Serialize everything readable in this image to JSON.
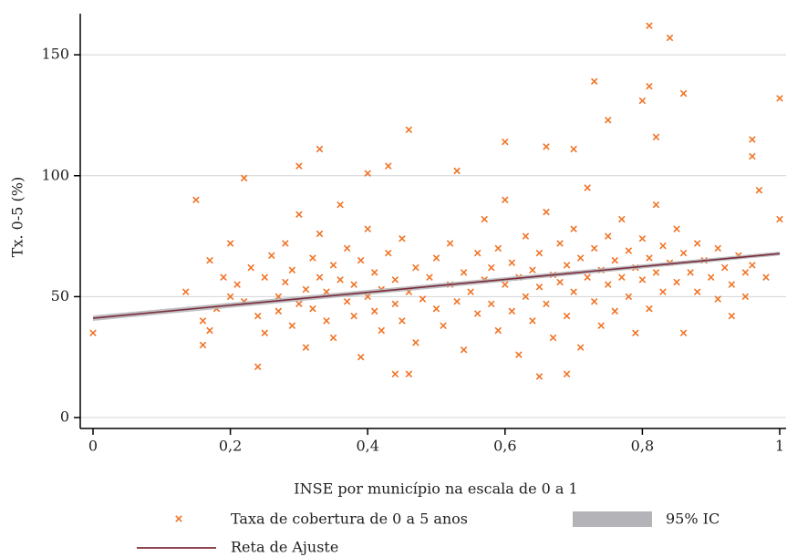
{
  "chart_data": {
    "type": "scatter",
    "x_label": "INSE por município na escala de 0 a 1",
    "y_label": "Tx. 0-5 (%)",
    "xlim": [
      -0.0186,
      1.0093
    ],
    "ylim": [
      -4.5,
      167
    ],
    "xticks": [
      0,
      {
        "value": 0.2,
        "label": "0,2"
      },
      {
        "value": 0.4,
        "label": "0,4"
      },
      {
        "value": 0.6,
        "label": "0,6"
      },
      {
        "value": 0.8,
        "label": "0,8"
      },
      1
    ],
    "yticks": [
      0,
      50,
      100,
      150
    ],
    "grid": true,
    "series": [
      {
        "name": "Taxa de cobertura de 0 a 5 anos",
        "color": "#f07426",
        "marker": "x",
        "x": [
          0,
          0.135,
          0.15,
          0.33,
          0.3,
          0.46,
          0.6,
          0.73,
          0.81,
          0.84,
          0.81,
          0.86,
          0.8,
          1,
          1,
          0.96,
          0.96,
          0.97,
          0.82,
          0.75,
          0.4,
          0.43,
          0.22,
          0.53,
          0.66,
          0.7,
          0.44,
          0.46,
          0.65,
          0.69,
          0.24,
          0.91,
          0.95,
          0.93,
          0.86,
          0.17,
          0.16,
          0.16,
          0.17,
          0.18,
          0.19,
          0.2,
          0.2,
          0.21,
          0.22,
          0.23,
          0.24,
          0.25,
          0.25,
          0.26,
          0.27,
          0.27,
          0.28,
          0.28,
          0.29,
          0.29,
          0.3,
          0.3,
          0.31,
          0.31,
          0.32,
          0.32,
          0.33,
          0.33,
          0.34,
          0.34,
          0.35,
          0.35,
          0.36,
          0.36,
          0.37,
          0.37,
          0.38,
          0.38,
          0.39,
          0.39,
          0.4,
          0.4,
          0.41,
          0.41,
          0.42,
          0.42,
          0.43,
          0.44,
          0.44,
          0.45,
          0.45,
          0.46,
          0.47,
          0.47,
          0.48,
          0.49,
          0.5,
          0.5,
          0.51,
          0.52,
          0.52,
          0.53,
          0.54,
          0.54,
          0.55,
          0.56,
          0.56,
          0.57,
          0.57,
          0.58,
          0.58,
          0.59,
          0.59,
          0.6,
          0.6,
          0.61,
          0.61,
          0.62,
          0.62,
          0.63,
          0.63,
          0.64,
          0.64,
          0.65,
          0.65,
          0.66,
          0.66,
          0.67,
          0.67,
          0.68,
          0.68,
          0.69,
          0.69,
          0.7,
          0.7,
          0.71,
          0.71,
          0.72,
          0.72,
          0.73,
          0.73,
          0.74,
          0.74,
          0.75,
          0.75,
          0.76,
          0.76,
          0.77,
          0.77,
          0.78,
          0.78,
          0.79,
          0.79,
          0.8,
          0.8,
          0.81,
          0.81,
          0.82,
          0.82,
          0.83,
          0.83,
          0.84,
          0.85,
          0.85,
          0.86,
          0.87,
          0.88,
          0.88,
          0.89,
          0.9,
          0.91,
          0.92,
          0.93,
          0.94,
          0.95,
          0.96,
          0.98
        ],
        "values": [
          35,
          52,
          90,
          111,
          104,
          119,
          114,
          139,
          162,
          157,
          137,
          134,
          131,
          132,
          82,
          115,
          108,
          94,
          116,
          123,
          101,
          104,
          99,
          102,
          112,
          111,
          18,
          18,
          17,
          18,
          21,
          49,
          50,
          42,
          35,
          36,
          30,
          40,
          65,
          45,
          58,
          72,
          50,
          55,
          48,
          62,
          42,
          58,
          35,
          67,
          50,
          44,
          72,
          56,
          38,
          61,
          47,
          84,
          53,
          29,
          66,
          45,
          58,
          76,
          40,
          52,
          63,
          33,
          57,
          88,
          48,
          70,
          42,
          55,
          65,
          25,
          50,
          78,
          44,
          60,
          53,
          36,
          68,
          47,
          57,
          40,
          74,
          52,
          62,
          31,
          49,
          58,
          45,
          66,
          38,
          55,
          72,
          48,
          60,
          28,
          52,
          43,
          68,
          57,
          82,
          47,
          62,
          36,
          70,
          55,
          90,
          44,
          64,
          58,
          26,
          75,
          50,
          61,
          40,
          68,
          54,
          85,
          47,
          59,
          33,
          72,
          56,
          63,
          42,
          78,
          52,
          66,
          29,
          58,
          95,
          48,
          70,
          61,
          38,
          75,
          55,
          65,
          44,
          82,
          58,
          50,
          69,
          62,
          35,
          74,
          57,
          66,
          45,
          88,
          60,
          52,
          71,
          64,
          56,
          78,
          68,
          60,
          72,
          52,
          65,
          58,
          70,
          62,
          55,
          67,
          60,
          63,
          58
        ]
      }
    ],
    "confidence_band": {
      "name": "95% IC",
      "color": "#b4b4b8",
      "x": [
        0,
        1
      ],
      "lower": [
        40,
        67
      ],
      "upper": [
        42.2,
        68.6
      ]
    },
    "fit_line": {
      "name": "Reta de Ajuste",
      "color": "#7b2b3a",
      "x": [
        0,
        1
      ],
      "values": [
        41.1,
        67.8
      ]
    }
  }
}
